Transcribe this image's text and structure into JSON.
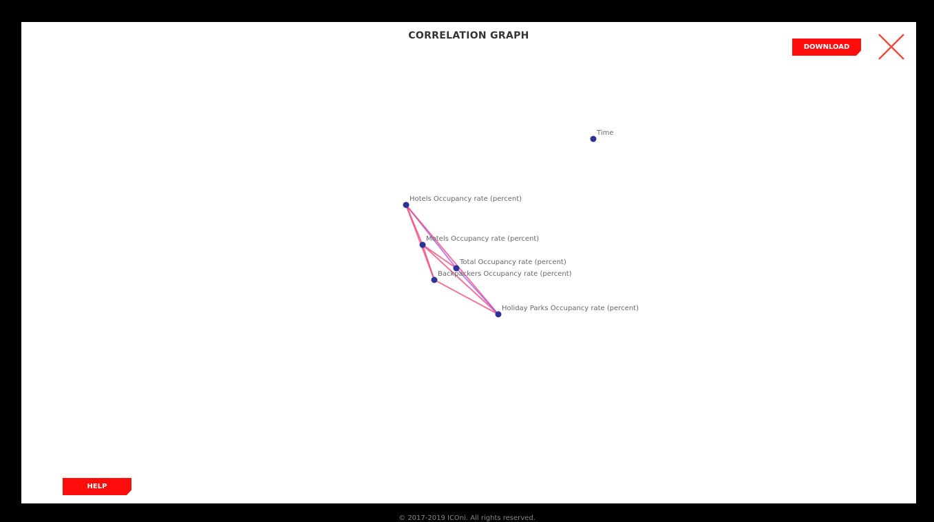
{
  "modal": {
    "title": "CORRELATION GRAPH",
    "download_label": "DOWNLOAD",
    "help_label": "HELP",
    "close_icon": "close-icon"
  },
  "colors": {
    "accent": "#ff0d0d",
    "close": "#f04a3c",
    "node": "#2b3494",
    "edge_pink": "#f0467a",
    "edge_purple": "#9b5cf0"
  },
  "graph": {
    "nodes": [
      {
        "id": "time",
        "label": "Time"
      },
      {
        "id": "hotels",
        "label": "Hotels Occupancy rate (percent)"
      },
      {
        "id": "motels",
        "label": "Motels Occupancy rate (percent)"
      },
      {
        "id": "total",
        "label": "Total Occupancy rate (percent)"
      },
      {
        "id": "backpackers",
        "label": "Backpackers Occupancy rate (percent)"
      },
      {
        "id": "holiday",
        "label": "Holiday Parks Occupancy rate (percent)"
      }
    ],
    "edges": [
      {
        "source": "hotels",
        "target": "motels",
        "color": "pink"
      },
      {
        "source": "hotels",
        "target": "total",
        "color": "purple"
      },
      {
        "source": "hotels",
        "target": "holiday",
        "color": "pink"
      },
      {
        "source": "motels",
        "target": "backpackers",
        "color": "pink"
      },
      {
        "source": "motels",
        "target": "total",
        "color": "pink"
      },
      {
        "source": "motels",
        "target": "holiday",
        "color": "pink"
      },
      {
        "source": "total",
        "target": "holiday",
        "color": "purple"
      },
      {
        "source": "backpackers",
        "target": "holiday",
        "color": "pink"
      },
      {
        "source": "hotels",
        "target": "backpackers",
        "color": "pink"
      }
    ]
  },
  "footer": {
    "text": "© 2017-2019 ICOni. All rights reserved."
  }
}
